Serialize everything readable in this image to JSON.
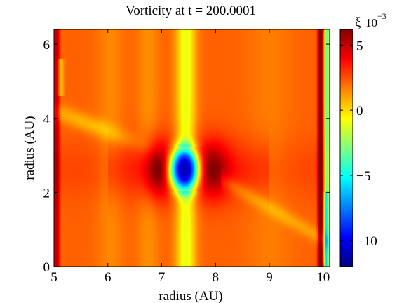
{
  "chart_data": {
    "type": "heatmap",
    "title": "Vorticity at t = 200.0001",
    "xlabel": "radius  (AU)",
    "ylabel": "radius  (AU)",
    "xlim": [
      5,
      10.12
    ],
    "ylim": [
      0,
      6.4
    ],
    "x_ticks": [
      5,
      6,
      7,
      8,
      9,
      10
    ],
    "y_ticks": [
      0,
      2,
      4,
      6
    ],
    "colorbar": {
      "label": "ξ",
      "scale_label": "10",
      "scale_exponent": "−3",
      "range": [
        -12,
        6.2
      ],
      "ticks": [
        5,
        0,
        -5,
        -10
      ],
      "tick_labels": [
        "5",
        "0",
        "−5",
        "−10"
      ],
      "colormap": "jet"
    },
    "features": {
      "background_value": 2.2,
      "vortex_center": [
        7.42,
        2.62
      ],
      "vortex_min": -11.5,
      "vortex_radius_x": 0.29,
      "vortex_radius_y": 0.62,
      "positive_lobes_peak": 5.5,
      "inner_edge_band_x": 5.05,
      "outer_edge_band_x": 9.95
    }
  }
}
